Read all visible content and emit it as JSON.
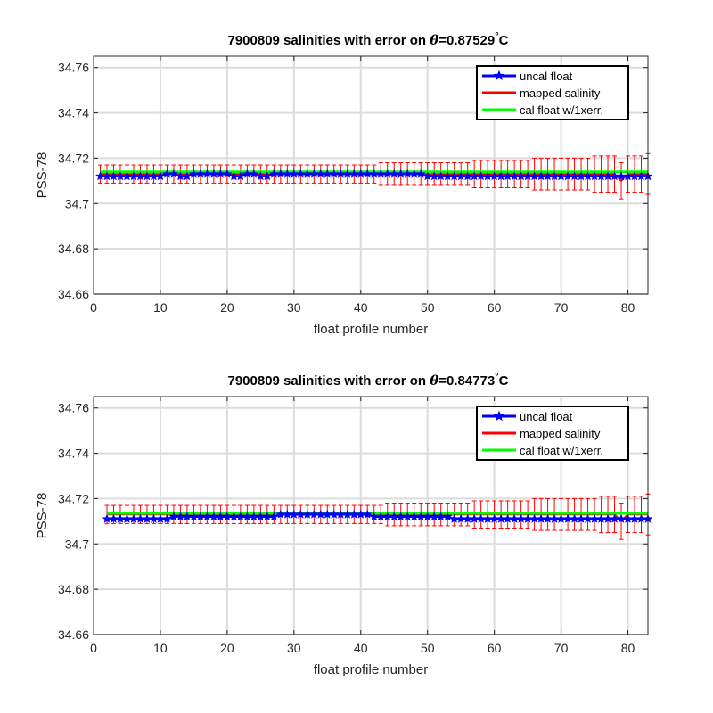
{
  "chart_data": [
    {
      "type": "line",
      "title_prefix": "7900809 salinities with error on ",
      "title_theta": "θ",
      "title_value": "=0.87529",
      "title_degree": "°",
      "title_unit": "C",
      "xlabel": "float profile number",
      "ylabel": "PSS-78",
      "xlim": [
        0,
        83
      ],
      "ylim": [
        34.66,
        34.765
      ],
      "xticks": [
        0,
        10,
        20,
        30,
        40,
        50,
        60,
        70,
        80
      ],
      "yticks": [
        34.66,
        34.68,
        34.7,
        34.72,
        34.74,
        34.76
      ],
      "ytick_labels": [
        "34.66",
        "34.68",
        "34.7",
        "34.72",
        "34.74",
        "34.76"
      ],
      "grid": true,
      "legend_position": "top-right",
      "x_start": 1,
      "series": [
        {
          "name": "uncal float",
          "color": "#0000ff",
          "marker": "star",
          "values": [
            34.712,
            34.712,
            34.712,
            34.712,
            34.712,
            34.712,
            34.712,
            34.712,
            34.712,
            34.712,
            34.713,
            34.713,
            34.712,
            34.712,
            34.713,
            34.713,
            34.713,
            34.713,
            34.713,
            34.713,
            34.712,
            34.712,
            34.713,
            34.713,
            34.712,
            34.712,
            34.713,
            34.713,
            34.713,
            34.713,
            34.713,
            34.713,
            34.713,
            34.713,
            34.713,
            34.713,
            34.713,
            34.713,
            34.713,
            34.713,
            34.713,
            34.713,
            34.713,
            34.713,
            34.713,
            34.713,
            34.713,
            34.713,
            34.713,
            34.712,
            34.712,
            34.712,
            34.712,
            34.712,
            34.712,
            34.712,
            34.712,
            34.712,
            34.712,
            34.712,
            34.712,
            34.712,
            34.712,
            34.712,
            34.712,
            34.712,
            34.712,
            34.712,
            34.712,
            34.712,
            34.712,
            34.712,
            34.712,
            34.712,
            34.712,
            34.712,
            34.712,
            34.712,
            34.712,
            34.712,
            34.712,
            34.712,
            34.712
          ]
        },
        {
          "name": "mapped salinity",
          "color": "#ff0000",
          "values": [
            34.713,
            34.713,
            34.713,
            34.713,
            34.713,
            34.713,
            34.713,
            34.713,
            34.713,
            34.713,
            34.713,
            34.713,
            34.713,
            34.713,
            34.713,
            34.713,
            34.713,
            34.713,
            34.713,
            34.713,
            34.713,
            34.713,
            34.713,
            34.713,
            34.713,
            34.713,
            34.713,
            34.713,
            34.713,
            34.713,
            34.713,
            34.713,
            34.713,
            34.713,
            34.713,
            34.713,
            34.713,
            34.713,
            34.713,
            34.713,
            34.713,
            34.713,
            34.713,
            34.713,
            34.713,
            34.713,
            34.713,
            34.713,
            34.713,
            34.713,
            34.713,
            34.713,
            34.713,
            34.713,
            34.713,
            34.713,
            34.713,
            34.713,
            34.713,
            34.713,
            34.713,
            34.713,
            34.713,
            34.713,
            34.713,
            34.713,
            34.713,
            34.713,
            34.713,
            34.713,
            34.713,
            34.713,
            34.713,
            34.713,
            34.713,
            34.713,
            34.713,
            34.713,
            34.71,
            34.713,
            34.713,
            34.713,
            34.713
          ],
          "error": [
            0.004,
            0.004,
            0.004,
            0.004,
            0.004,
            0.004,
            0.004,
            0.004,
            0.004,
            0.004,
            0.004,
            0.004,
            0.004,
            0.004,
            0.004,
            0.004,
            0.004,
            0.004,
            0.004,
            0.004,
            0.004,
            0.004,
            0.004,
            0.004,
            0.004,
            0.004,
            0.004,
            0.004,
            0.004,
            0.004,
            0.004,
            0.004,
            0.004,
            0.004,
            0.004,
            0.004,
            0.004,
            0.004,
            0.004,
            0.004,
            0.004,
            0.004,
            0.005,
            0.005,
            0.005,
            0.005,
            0.005,
            0.005,
            0.005,
            0.005,
            0.005,
            0.005,
            0.005,
            0.005,
            0.005,
            0.005,
            0.006,
            0.006,
            0.006,
            0.006,
            0.006,
            0.006,
            0.006,
            0.006,
            0.006,
            0.007,
            0.007,
            0.007,
            0.007,
            0.007,
            0.007,
            0.007,
            0.007,
            0.007,
            0.008,
            0.008,
            0.008,
            0.008,
            0.008,
            0.008,
            0.008,
            0.008,
            0.009
          ]
        },
        {
          "name": "cal float w/1xerr.",
          "color": "#00ff00",
          "values": [
            34.714,
            34.714,
            34.714,
            34.714,
            34.714,
            34.714,
            34.714,
            34.714,
            34.714,
            34.714,
            34.714,
            34.714,
            34.714,
            34.714,
            34.714,
            34.714,
            34.714,
            34.714,
            34.714,
            34.714,
            34.714,
            34.714,
            34.714,
            34.714,
            34.714,
            34.714,
            34.714,
            34.714,
            34.714,
            34.714,
            34.714,
            34.714,
            34.714,
            34.714,
            34.714,
            34.714,
            34.714,
            34.714,
            34.714,
            34.714,
            34.714,
            34.714,
            34.714,
            34.714,
            34.714,
            34.714,
            34.714,
            34.714,
            34.714,
            34.714,
            34.714,
            34.714,
            34.714,
            34.714,
            34.714,
            34.714,
            34.714,
            34.714,
            34.714,
            34.714,
            34.714,
            34.714,
            34.714,
            34.714,
            34.714,
            34.714,
            34.714,
            34.714,
            34.714,
            34.714,
            34.714,
            34.714,
            34.714,
            34.714,
            34.714,
            34.714,
            34.714,
            34.714,
            34.714,
            34.714,
            34.714,
            34.714,
            34.714
          ]
        }
      ]
    },
    {
      "type": "line",
      "title_prefix": "7900809 salinities with error on ",
      "title_theta": "θ",
      "title_value": "=0.84773",
      "title_degree": "°",
      "title_unit": "C",
      "xlabel": "float profile number",
      "ylabel": "PSS-78",
      "xlim": [
        0,
        83
      ],
      "ylim": [
        34.66,
        34.765
      ],
      "xticks": [
        0,
        10,
        20,
        30,
        40,
        50,
        60,
        70,
        80
      ],
      "yticks": [
        34.66,
        34.68,
        34.7,
        34.72,
        34.74,
        34.76
      ],
      "ytick_labels": [
        "34.66",
        "34.68",
        "34.7",
        "34.72",
        "34.74",
        "34.76"
      ],
      "grid": true,
      "legend_position": "top-right",
      "x_start": 2,
      "series": [
        {
          "name": "uncal float",
          "color": "#0000ff",
          "marker": "star",
          "values": [
            34.711,
            34.711,
            34.711,
            34.711,
            34.711,
            34.711,
            34.711,
            34.711,
            34.711,
            34.711,
            34.712,
            34.712,
            34.712,
            34.712,
            34.712,
            34.712,
            34.712,
            34.712,
            34.712,
            34.712,
            34.712,
            34.712,
            34.712,
            34.712,
            34.712,
            34.712,
            34.713,
            34.713,
            34.713,
            34.713,
            34.713,
            34.713,
            34.713,
            34.713,
            34.713,
            34.713,
            34.713,
            34.713,
            34.713,
            34.713,
            34.712,
            34.712,
            34.712,
            34.712,
            34.712,
            34.712,
            34.712,
            34.712,
            34.712,
            34.712,
            34.712,
            34.712,
            34.711,
            34.711,
            34.711,
            34.711,
            34.711,
            34.711,
            34.711,
            34.711,
            34.711,
            34.711,
            34.711,
            34.711,
            34.711,
            34.711,
            34.711,
            34.711,
            34.711,
            34.711,
            34.711,
            34.711,
            34.711,
            34.711,
            34.711,
            34.711,
            34.711,
            34.711,
            34.711,
            34.711,
            34.711,
            34.711
          ]
        },
        {
          "name": "mapped salinity",
          "color": "#ff0000",
          "values": [
            34.713,
            34.713,
            34.713,
            34.713,
            34.713,
            34.713,
            34.713,
            34.713,
            34.713,
            34.713,
            34.713,
            34.713,
            34.713,
            34.713,
            34.713,
            34.713,
            34.713,
            34.713,
            34.713,
            34.713,
            34.713,
            34.713,
            34.713,
            34.713,
            34.713,
            34.713,
            34.713,
            34.713,
            34.713,
            34.713,
            34.713,
            34.713,
            34.713,
            34.713,
            34.713,
            34.713,
            34.713,
            34.713,
            34.713,
            34.713,
            34.713,
            34.713,
            34.713,
            34.713,
            34.713,
            34.713,
            34.713,
            34.713,
            34.713,
            34.713,
            34.713,
            34.713,
            34.713,
            34.713,
            34.713,
            34.713,
            34.713,
            34.713,
            34.713,
            34.713,
            34.713,
            34.713,
            34.713,
            34.713,
            34.713,
            34.713,
            34.713,
            34.713,
            34.713,
            34.713,
            34.713,
            34.713,
            34.713,
            34.713,
            34.713,
            34.713,
            34.713,
            34.71,
            34.713,
            34.713,
            34.713,
            34.713
          ],
          "error": [
            0.004,
            0.004,
            0.004,
            0.004,
            0.004,
            0.004,
            0.004,
            0.004,
            0.004,
            0.004,
            0.004,
            0.004,
            0.004,
            0.004,
            0.004,
            0.004,
            0.004,
            0.004,
            0.004,
            0.004,
            0.004,
            0.004,
            0.004,
            0.004,
            0.004,
            0.004,
            0.004,
            0.004,
            0.004,
            0.004,
            0.004,
            0.004,
            0.004,
            0.004,
            0.004,
            0.004,
            0.004,
            0.004,
            0.004,
            0.004,
            0.004,
            0.004,
            0.005,
            0.005,
            0.005,
            0.005,
            0.005,
            0.005,
            0.005,
            0.005,
            0.005,
            0.005,
            0.005,
            0.005,
            0.005,
            0.006,
            0.006,
            0.006,
            0.006,
            0.006,
            0.006,
            0.006,
            0.006,
            0.006,
            0.007,
            0.007,
            0.007,
            0.007,
            0.007,
            0.007,
            0.007,
            0.007,
            0.007,
            0.007,
            0.008,
            0.008,
            0.008,
            0.008,
            0.008,
            0.008,
            0.008,
            0.009
          ]
        },
        {
          "name": "cal float w/1xerr.",
          "color": "#00ff00",
          "values": [
            34.7135,
            34.7135,
            34.7135,
            34.7135,
            34.7135,
            34.7135,
            34.7135,
            34.7135,
            34.7135,
            34.7135,
            34.7135,
            34.7135,
            34.7135,
            34.7135,
            34.7135,
            34.7135,
            34.7135,
            34.7135,
            34.7135,
            34.7135,
            34.7135,
            34.7135,
            34.7135,
            34.7135,
            34.7135,
            34.7135,
            34.7135,
            34.7135,
            34.7135,
            34.7135,
            34.7135,
            34.7135,
            34.7135,
            34.7135,
            34.7135,
            34.7135,
            34.7135,
            34.7135,
            34.7135,
            34.7135,
            34.7135,
            34.7135,
            34.7135,
            34.7135,
            34.7135,
            34.7135,
            34.7135,
            34.7135,
            34.7135,
            34.7135,
            34.7135,
            34.7135,
            34.7135,
            34.7135,
            34.7135,
            34.7135,
            34.7135,
            34.7135,
            34.7135,
            34.7135,
            34.7135,
            34.7135,
            34.7135,
            34.7135,
            34.7135,
            34.7135,
            34.7135,
            34.7135,
            34.7135,
            34.7135,
            34.7135,
            34.7135,
            34.7135,
            34.7135,
            34.7135,
            34.7135,
            34.7135,
            34.7135,
            34.7135,
            34.7135,
            34.7135,
            34.7135
          ]
        }
      ]
    }
  ]
}
